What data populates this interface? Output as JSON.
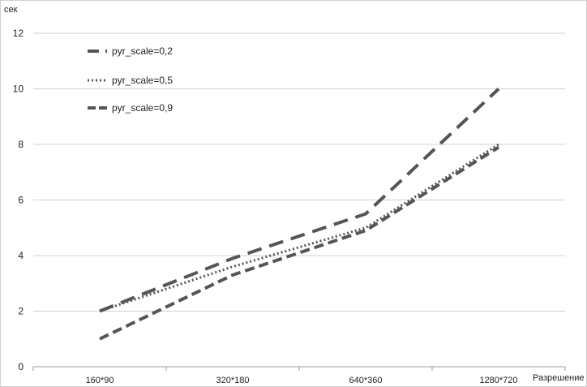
{
  "chart_data": {
    "type": "line",
    "title": "",
    "xlabel": "Разрешение",
    "ylabel": "сек",
    "categories": [
      "160*90",
      "320*180",
      "640*360",
      "1280*720"
    ],
    "ylim": [
      0,
      12
    ],
    "yticks": [
      "0",
      "2",
      "4",
      "6",
      "8",
      "10",
      "12"
    ],
    "grid": "horizontal",
    "legend_position": "top-left",
    "series": [
      {
        "name": "pyr_scale=0,2",
        "style": "long-dash",
        "color": "#555555",
        "values": [
          2.0,
          3.9,
          5.5,
          10.0
        ]
      },
      {
        "name": "pyr_scale=0,5",
        "style": "dotted",
        "color": "#555555",
        "values": [
          2.0,
          3.6,
          5.0,
          8.0
        ]
      },
      {
        "name": "pyr_scale=0,9",
        "style": "dashed",
        "color": "#555555",
        "values": [
          1.0,
          3.3,
          4.9,
          7.9
        ]
      }
    ]
  }
}
